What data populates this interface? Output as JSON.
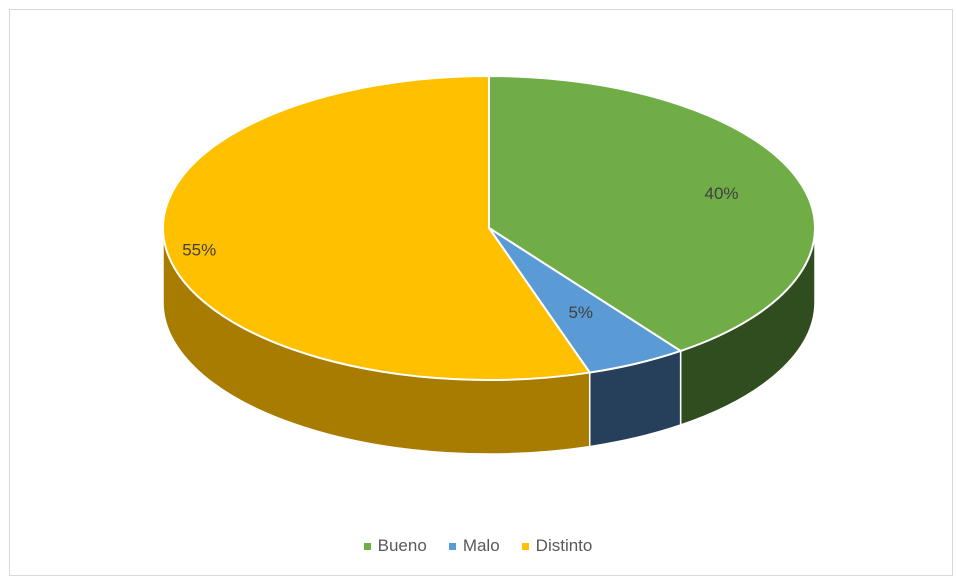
{
  "chart_data": {
    "type": "pie",
    "title": "",
    "categories": [
      "Bueno",
      "Malo",
      "Distinto"
    ],
    "values": [
      40,
      5,
      55
    ],
    "labels": [
      "40%",
      "5%",
      "55%"
    ],
    "colors": [
      "#70ad47",
      "#5b9bd5",
      "#ffc000"
    ],
    "side_colors": [
      "#2f4d1f",
      "#26405b",
      "#a87c00"
    ],
    "style": "3d",
    "legend": "bottom"
  }
}
